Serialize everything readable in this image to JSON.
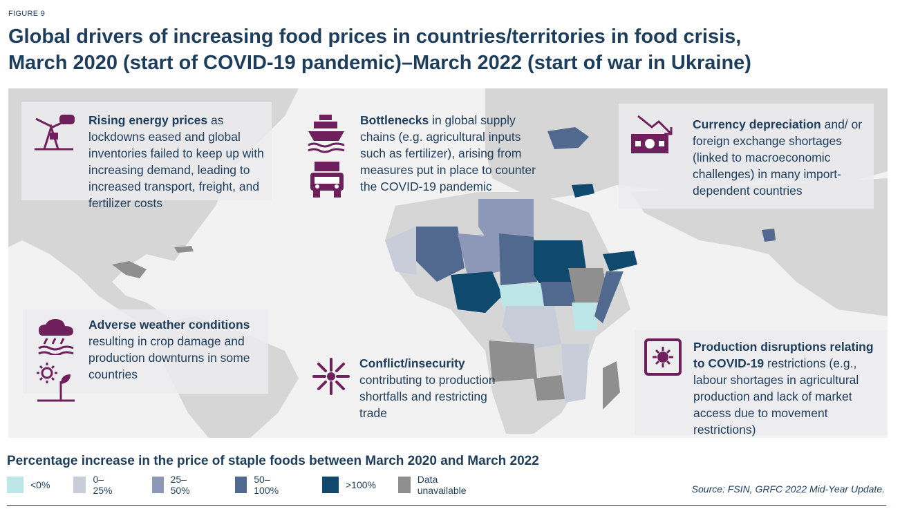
{
  "figure_label": "FIGURE 9",
  "title_line1": "Global drivers of increasing food prices in countries/territories in food crisis,",
  "title_line2": "March 2020 (start of COVID-19 pandemic)–March 2022 (start of war in Ukraine)",
  "panels": {
    "energy": {
      "bold": "Rising energy prices",
      "text": " as lockdowns eased and global inventories failed to keep up with increasing demand, leading to increased transport, freight, and fertilizer costs"
    },
    "bottlenecks": {
      "bold": "Bottlenecks",
      "text": " in global supply chains (e.g. agricultural inputs such as fertilizer), arising from measures put in place to counter the COVID-19 pandemic"
    },
    "currency": {
      "bold": "Currency depreciation",
      "text": " and/ or foreign exchange shortages (linked to macroeconomic challenges) in many import-dependent countries"
    },
    "weather": {
      "bold": "Adverse weather conditions",
      "text": " resulting in crop damage and production downturns in some countries"
    },
    "conflict": {
      "bold": "Conflict/insecurity",
      "text": " contributing to production shortfalls and restricting trade"
    },
    "production": {
      "bold": "Production disruptions relating to COVID-19",
      "text": " restrictions (e.g., labour shortages in agricultural production and lack of market access due to movement restrictions)"
    }
  },
  "legend": {
    "title": "Percentage increase in the price of staple foods between March 2020 and March 2022",
    "items": [
      {
        "label": "<0%",
        "color": "#bde6e8"
      },
      {
        "label": "0–25%",
        "color": "#c9ccd9"
      },
      {
        "label": "25–50%",
        "color": "#8d97b8"
      },
      {
        "label": "50–100%",
        "color": "#52698f"
      },
      {
        "label": ">100%",
        "color": "#0f4a6e"
      },
      {
        "label": "Data unavailable",
        "color": "#8f8f8f"
      }
    ]
  },
  "source": "Source: FSIN, GRFC 2022 Mid-Year Update.",
  "colors": {
    "icon": "#6e1f5c",
    "text": "#1d3d5c",
    "land": "#d6d6d6",
    "ocean": "#f2f2f2"
  },
  "icons": [
    "oil-pump-icon",
    "ship-icon",
    "truck-icon",
    "currency-down-icon",
    "storm-icon",
    "drought-icon",
    "conflict-icon",
    "virus-icon"
  ]
}
